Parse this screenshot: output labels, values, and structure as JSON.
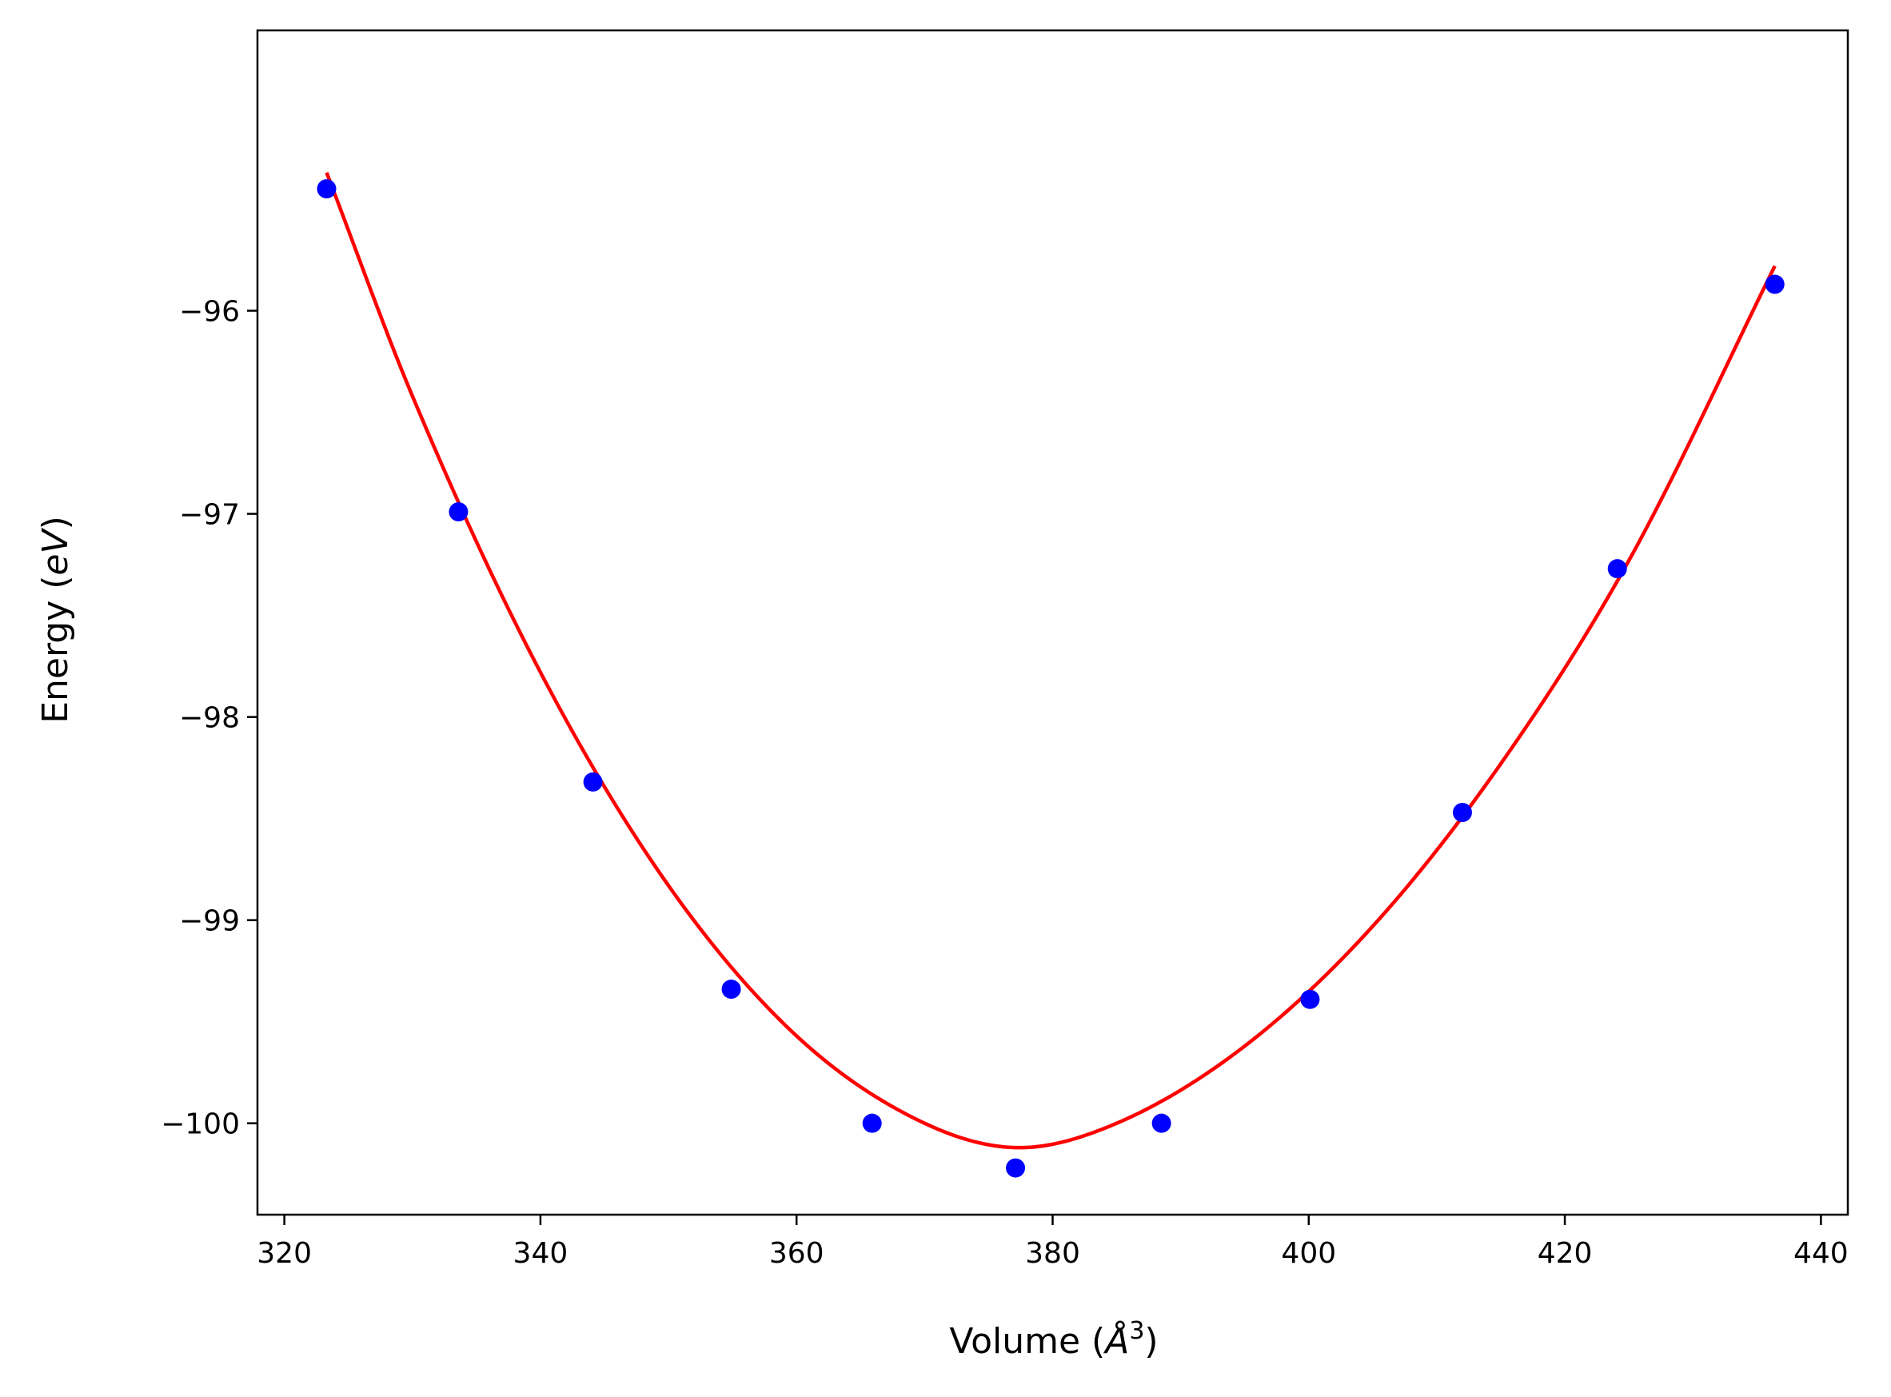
{
  "chart_data": {
    "type": "scatter",
    "xlabel": {
      "pre": "Volume (",
      "sym": "Å",
      "sup": "3",
      "post": ")"
    },
    "ylabel": {
      "pre": "Energy (",
      "sym": "eV",
      "post": ")"
    },
    "xlim": [
      317.9,
      442.1
    ],
    "ylim": [
      -100.45,
      -94.62
    ],
    "xticks": [
      320,
      340,
      360,
      380,
      400,
      420,
      440
    ],
    "yticks": [
      -100,
      -99,
      -98,
      -97,
      -96
    ],
    "ytick_labels": [
      "−100",
      "−99",
      "−98",
      "−97",
      "−96"
    ],
    "grid": false,
    "colors": {
      "points": "#0000ff",
      "fit": "#ff0000",
      "axes": "#000000"
    },
    "series": [
      {
        "kind": "points",
        "x": [
          323.3,
          333.6,
          344.1,
          354.9,
          365.9,
          377.1,
          388.5,
          400.1,
          412.0,
          424.1,
          436.4
        ],
        "y": [
          -95.4,
          -96.99,
          -98.32,
          -99.34,
          -100.0,
          -100.22,
          -100.0,
          -99.39,
          -98.47,
          -97.27,
          -95.87
        ]
      },
      {
        "kind": "fit-line",
        "x": [
          323.3,
          330,
          340,
          350,
          360,
          370,
          377.4,
          385,
          395,
          405,
          415,
          425,
          436.4
        ],
        "y": [
          -95.32,
          -96.42,
          -97.78,
          -98.83,
          -99.57,
          -100.0,
          -100.12,
          -100.0,
          -99.62,
          -99.03,
          -98.23,
          -97.23,
          -95.78
        ]
      }
    ]
  }
}
